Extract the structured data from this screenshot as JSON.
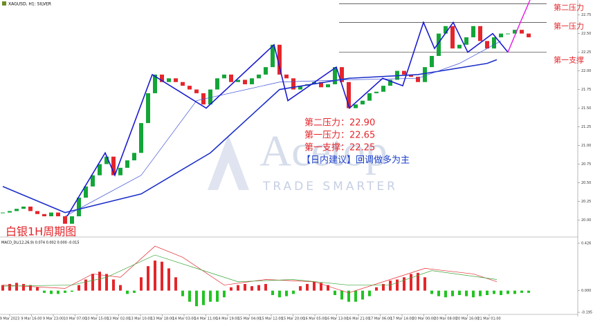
{
  "chart_data": [
    {
      "type": "candlestick",
      "title": "XAGUSD, H1: SILVER",
      "caption": "白银1H周期图",
      "up_color": "#13a538",
      "down_color": "#e4262b",
      "values": [
        20.1,
        20.12,
        20.15,
        20.18,
        20.12,
        20.08,
        20.05,
        20.1,
        20.05,
        19.95,
        20.05,
        20.3,
        20.45,
        20.6,
        20.75,
        20.85,
        20.6,
        20.7,
        20.8,
        20.9,
        21.3,
        21.7,
        21.95,
        21.85,
        21.9,
        21.85,
        21.8,
        21.75,
        21.7,
        21.55,
        21.75,
        21.9,
        21.95,
        21.85,
        21.88,
        21.82,
        21.9,
        21.95,
        22.05,
        22.35,
        21.95,
        21.9,
        21.75,
        21.8,
        21.82,
        21.85,
        21.78,
        21.82,
        22.05,
        21.85,
        21.5,
        21.55,
        21.6,
        21.7,
        21.72,
        21.8,
        21.88,
        22.0,
        21.95,
        21.92,
        21.85,
        22.05,
        22.2,
        22.5,
        22.6,
        22.3,
        22.35,
        22.45,
        22.6,
        22.4,
        22.3,
        22.45,
        22.5,
        22.5,
        22.55,
        22.5,
        22.45
      ],
      "ylim": [
        19.8,
        22.95
      ],
      "yticks": [
        {
          "value": 20,
          "label": "20.00"
        },
        20.25,
        {
          "value": 20.5,
          "label": "20.50"
        },
        20.75,
        {
          "value": 21,
          "label": "21.00"
        },
        21.25,
        {
          "value": 21.5,
          "label": "21.50"
        },
        21.75,
        {
          "value": 22,
          "label": "22.00"
        },
        22.25,
        {
          "value": 22.5,
          "label": "22.50"
        },
        22.75
      ],
      "lines": [
        {
          "color": "#1c2fc9",
          "x": [
            0,
            9,
            20,
            30,
            40,
            50,
            60,
            70,
            71.4
          ],
          "values": [
            20.45,
            20.1,
            20.35,
            20.9,
            21.75,
            21.9,
            21.95,
            22.1,
            22.15
          ]
        },
        {
          "color": "#3b4fd8",
          "x": [
            9,
            20,
            28,
            40,
            50,
            60,
            66,
            72
          ],
          "values": [
            20.05,
            20.6,
            21.6,
            21.85,
            21.88,
            21.9,
            22.1,
            22.4
          ]
        },
        {
          "color": "#1a1ad0",
          "x": [
            9.3,
            14.8,
            16.2,
            21.6,
            29.4,
            39.2,
            41.2,
            48.2,
            50.1,
            54.9,
            57.8,
            60.8,
            62.4,
            65.1,
            67.2,
            70.8,
            73
          ],
          "values": [
            20.05,
            20.9,
            20.6,
            21.95,
            21.5,
            22.35,
            21.6,
            22.05,
            21.5,
            21.9,
            21.8,
            22.65,
            22.3,
            22.65,
            22.25,
            22.5,
            22.25
          ]
        },
        {
          "color": "#e619e6",
          "x": [
            73,
            74.8,
            76.2
          ],
          "values": [
            22.25,
            22.65,
            22.95
          ]
        }
      ],
      "levels": [
        {
          "value": 22.9,
          "label": "第二压力"
        },
        {
          "value": 22.65,
          "label": "第一压力"
        },
        {
          "value": 22.25,
          "label": "第一支撑"
        }
      ],
      "annotations": [
        "第二压力：22.90",
        "第一压力：22.65",
        "第一支撑：22.25",
        "【日内建议】回调做多为主"
      ],
      "watermark": [
        "Acetop",
        "TRADE SMARTER"
      ]
    },
    {
      "type": "histogram",
      "title": "MACD_DL(12,26,9) 0.074 0.002 0.000 -0.015",
      "pos_color": "#e4262b",
      "neg_color": "#22c322",
      "values": [
        0.05,
        0.06,
        0.07,
        0.06,
        0.05,
        0.03,
        -0.02,
        -0.03,
        -0.03,
        -0.02,
        -0.01,
        0.05,
        0.1,
        0.15,
        0.17,
        0.15,
        0.1,
        0.05,
        -0.03,
        -0.02,
        0.12,
        0.22,
        0.27,
        0.26,
        0.2,
        0.12,
        -0.05,
        -0.1,
        -0.14,
        -0.13,
        -0.1,
        -0.1,
        -0.06,
        0.03,
        0.05,
        0.06,
        0.04,
        0.05,
        0.06,
        -0.04,
        -0.06,
        -0.05,
        -0.03,
        0.04,
        0.06,
        0.08,
        0.07,
        0.05,
        -0.04,
        -0.08,
        -0.1,
        -0.1,
        -0.08,
        -0.05,
        0.03,
        0.06,
        0.09,
        0.1,
        0.12,
        0.15,
        0.16,
        0.12,
        -0.03,
        -0.05,
        -0.06,
        -0.05,
        -0.04,
        -0.05,
        -0.06,
        -0.05,
        -0.04,
        -0.03,
        -0.04,
        -0.03,
        -0.03,
        -0.02,
        -0.02
      ],
      "ylim": [
        -0.195,
        0.426
      ],
      "yticks": [
        0.426,
        {
          "value": 0,
          "label": "0.000"
        },
        -0.195
      ],
      "lines": [
        {
          "color": "#e4262b",
          "x": [
            0,
            9,
            13,
            17,
            22,
            26,
            32,
            38,
            45,
            50,
            56,
            61,
            68,
            71.4
          ],
          "values": [
            0.05,
            0.02,
            0.15,
            0.12,
            0.4,
            0.3,
            0.05,
            0.1,
            0.08,
            -0.02,
            0.1,
            0.2,
            0.15,
            0.08
          ]
        },
        {
          "color": "#3aa53a",
          "x": [
            0,
            10,
            15,
            22,
            28,
            34,
            42,
            50,
            56,
            62,
            71.4
          ],
          "values": [
            0.04,
            0.05,
            0.12,
            0.32,
            0.2,
            0.08,
            0.1,
            0.05,
            0.05,
            0.18,
            0.1
          ]
        }
      ],
      "xticks": [
        {
          "value": 1,
          "label": "9 Mar 2023"
        },
        {
          "value": 4.15,
          "label": "9 Mar 16:00"
        },
        {
          "value": 7.3,
          "label": "9 Mar 23:00"
        },
        {
          "value": 10.45,
          "label": "10 Mar 07:00"
        },
        {
          "value": 13.6,
          "label": "10 Mar 15:00"
        },
        {
          "value": 16.75,
          "label": "13 Mar 02:00"
        },
        {
          "value": 19.9,
          "label": "13 Mar 10:00"
        },
        {
          "value": 23.05,
          "label": "13 Mar 18:00"
        },
        {
          "value": 26.2,
          "label": "14 Mar 03:00"
        },
        {
          "value": 29.35,
          "label": "14 Mar 11:00"
        },
        {
          "value": 32.5,
          "label": "14 Mar 19:00"
        },
        {
          "value": 35.65,
          "label": "15 Mar 04:00"
        },
        {
          "value": 38.8,
          "label": "15 Mar 12:00"
        },
        {
          "value": 41.95,
          "label": "15 Mar 20:00"
        },
        {
          "value": 45.1,
          "label": "16 Mar 05:00"
        },
        {
          "value": 48.25,
          "label": "16 Mar 13:00"
        },
        {
          "value": 51.4,
          "label": "16 Mar 21:00"
        },
        {
          "value": 54.55,
          "label": "17 Mar 06:00"
        },
        {
          "value": 57.7,
          "label": "17 Mar 14:00"
        },
        {
          "value": 60.85,
          "label": "20 Mar 00:00"
        },
        {
          "value": 64,
          "label": "20 Mar 08:00"
        },
        {
          "value": 67.15,
          "label": "20 Mar 16:00"
        },
        {
          "value": 70.3,
          "label": "21 Mar 01:00"
        }
      ]
    }
  ]
}
